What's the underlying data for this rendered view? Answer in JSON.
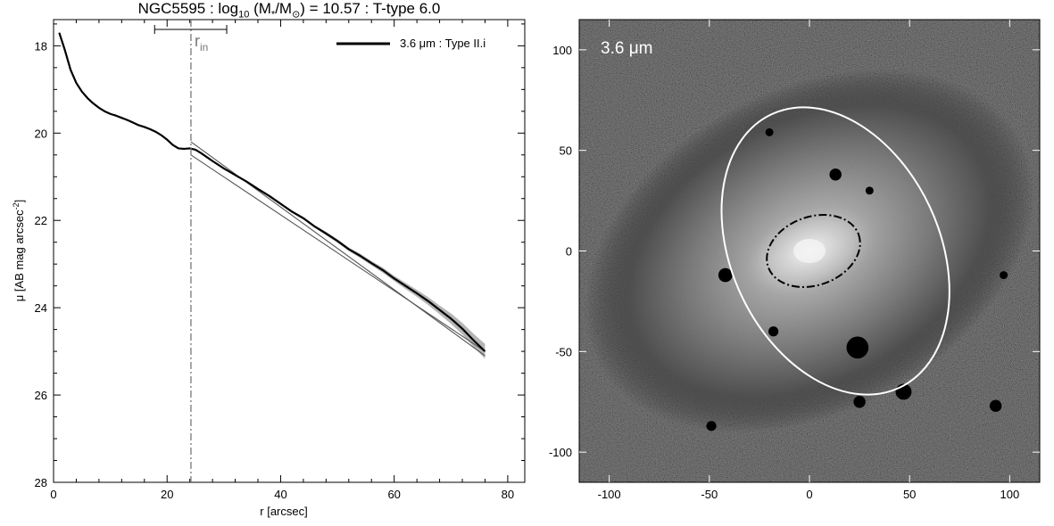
{
  "header": {
    "title_prefix": "NGC5595 : log",
    "title_sub": "10",
    "title_mid": " (M",
    "title_star": "*",
    "title_slash": "/M",
    "title_sun": "⊙",
    "title_suffix": ") = 10.57 : T-type 6.0"
  },
  "chart_data": [
    {
      "type": "line",
      "title": "NGC5595 : log10 (M*/M⊙) = 10.57 : T-type 6.0",
      "xlabel": "r [arcsec]",
      "ylabel": "μ [AB mag arcsec⁻²]",
      "ylabel_main": "μ [AB mag arcsec",
      "ylabel_exp": "-2",
      "ylabel_close": "]",
      "xlim": [
        0,
        83
      ],
      "ylim": [
        28,
        17.4
      ],
      "y_inverted": true,
      "xticks": [
        0,
        20,
        40,
        60,
        80
      ],
      "xtick_labels": [
        "0",
        "20",
        "40",
        "60",
        "80"
      ],
      "yticks": [
        18,
        20,
        22,
        24,
        26,
        28
      ],
      "ytick_labels": [
        "18",
        "20",
        "22",
        "24",
        "26",
        "28"
      ],
      "legend": {
        "label": "3.6 μm : Type II.i",
        "placement": "top-right"
      },
      "annotations": [
        {
          "text": "r",
          "subscript": "in",
          "x": 24.2
        },
        {
          "type": "vline",
          "x": 24.2,
          "style": "dash-dot"
        },
        {
          "type": "errorbar",
          "xmin": 17.8,
          "xmax": 30.5
        }
      ],
      "series": [
        {
          "name": "3.6 μm : Type II.i",
          "x": [
            1,
            2,
            3,
            4,
            5,
            6,
            7,
            8,
            9,
            10,
            11,
            12,
            13,
            14,
            15,
            16,
            17,
            18,
            19,
            20,
            21,
            22,
            23,
            24,
            25,
            26,
            28,
            30,
            32,
            34,
            36,
            38,
            40,
            42,
            44,
            46,
            48,
            50,
            52,
            54,
            56,
            58,
            60,
            62,
            64,
            66,
            68,
            70,
            72,
            74,
            76
          ],
          "y": [
            17.7,
            18.1,
            18.55,
            18.85,
            19.05,
            19.2,
            19.32,
            19.42,
            19.5,
            19.56,
            19.6,
            19.65,
            19.7,
            19.76,
            19.82,
            19.86,
            19.91,
            19.97,
            20.05,
            20.15,
            20.27,
            20.35,
            20.36,
            20.35,
            20.38,
            20.46,
            20.64,
            20.81,
            20.96,
            21.11,
            21.28,
            21.44,
            21.62,
            21.8,
            21.95,
            22.14,
            22.3,
            22.47,
            22.66,
            22.81,
            22.98,
            23.14,
            23.33,
            23.5,
            23.67,
            23.85,
            24.05,
            24.25,
            24.48,
            24.75,
            25.0
          ],
          "band_half_width": [
            0,
            0,
            0,
            0,
            0,
            0,
            0,
            0,
            0,
            0,
            0,
            0,
            0,
            0,
            0,
            0,
            0,
            0,
            0,
            0,
            0,
            0,
            0,
            0,
            0,
            0.02,
            0.02,
            0.02,
            0.02,
            0.02,
            0.02,
            0.03,
            0.03,
            0.03,
            0.03,
            0.03,
            0.04,
            0.04,
            0.04,
            0.05,
            0.05,
            0.06,
            0.06,
            0.07,
            0.08,
            0.09,
            0.1,
            0.12,
            0.13,
            0.15,
            0.17
          ]
        },
        {
          "name": "",
          "x": [
            24.2,
            76
          ],
          "y": [
            20.5,
            25.0
          ]
        },
        {
          "name": "",
          "x": [
            24.2,
            76
          ],
          "y": [
            20.2,
            25.1
          ]
        }
      ]
    },
    {
      "type": "image",
      "label": "3.6 μm",
      "xlim": [
        -115,
        115
      ],
      "ylim": [
        -115,
        115
      ],
      "xticks": [
        -100,
        -50,
        0,
        50,
        100
      ],
      "xtick_labels": [
        "-100",
        "-50",
        "0",
        "50",
        "100"
      ],
      "yticks": [
        -100,
        -50,
        0,
        50,
        100
      ],
      "ytick_labels": [
        "-100",
        "-50",
        "0",
        "50",
        "100"
      ],
      "ellipses": [
        {
          "name": "outer-ellipse",
          "cx": 13,
          "cy": 0,
          "rx": 52,
          "ry": 75,
          "angle": -25,
          "color": "#ffffff",
          "style": "solid"
        },
        {
          "name": "inner-ellipse",
          "cx": 2,
          "cy": 0,
          "rx": 24,
          "ry": 17,
          "angle": -20,
          "color": "#000000",
          "style": "dash-dot"
        }
      ],
      "dark_spots": [
        {
          "x": -20,
          "y": 59,
          "r": 2
        },
        {
          "x": 13,
          "y": 38,
          "r": 3
        },
        {
          "x": 30,
          "y": 30,
          "r": 2
        },
        {
          "x": -42,
          "y": -12,
          "r": 3.5
        },
        {
          "x": -18,
          "y": -40,
          "r": 2.5
        },
        {
          "x": 24,
          "y": -48,
          "r": 5.5
        },
        {
          "x": 47,
          "y": -70,
          "r": 4
        },
        {
          "x": 25,
          "y": -75,
          "r": 3
        },
        {
          "x": 93,
          "y": -77,
          "r": 3
        },
        {
          "x": 97,
          "y": -12,
          "r": 2
        },
        {
          "x": -49,
          "y": -87,
          "r": 2.5
        }
      ]
    }
  ]
}
